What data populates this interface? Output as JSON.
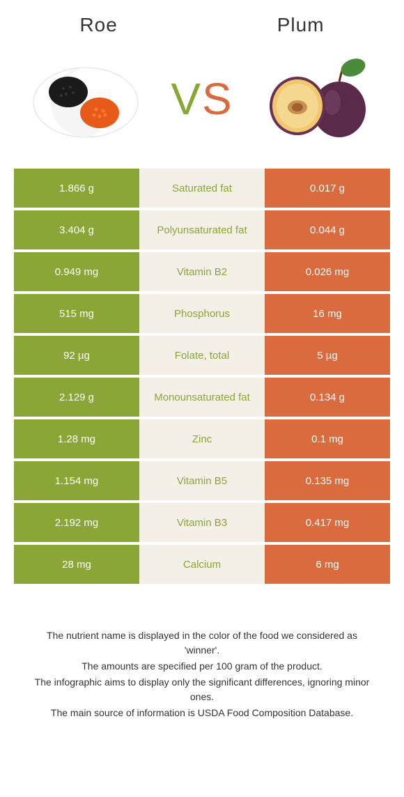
{
  "header": {
    "left_title": "Roe",
    "right_title": "Plum"
  },
  "vs": {
    "v": "V",
    "s": "S"
  },
  "colors": {
    "green": "#8aa636",
    "orange": "#d96b3f",
    "mid_bg": "#f4f0e8"
  },
  "rows": [
    {
      "left": "1.866 g",
      "label": "Saturated fat",
      "right": "0.017 g",
      "winner": "green"
    },
    {
      "left": "3.404 g",
      "label": "Polyunsaturated fat",
      "right": "0.044 g",
      "winner": "green"
    },
    {
      "left": "0.949 mg",
      "label": "Vitamin B2",
      "right": "0.026 mg",
      "winner": "green"
    },
    {
      "left": "515 mg",
      "label": "Phosphorus",
      "right": "16 mg",
      "winner": "green"
    },
    {
      "left": "92 µg",
      "label": "Folate, total",
      "right": "5 µg",
      "winner": "green"
    },
    {
      "left": "2.129 g",
      "label": "Monounsaturated fat",
      "right": "0.134 g",
      "winner": "green"
    },
    {
      "left": "1.28 mg",
      "label": "Zinc",
      "right": "0.1 mg",
      "winner": "green"
    },
    {
      "left": "1.154 mg",
      "label": "Vitamin B5",
      "right": "0.135 mg",
      "winner": "green"
    },
    {
      "left": "2.192 mg",
      "label": "Vitamin B3",
      "right": "0.417 mg",
      "winner": "green"
    },
    {
      "left": "28 mg",
      "label": "Calcium",
      "right": "6 mg",
      "winner": "green"
    }
  ],
  "footer": {
    "line1": "The nutrient name is displayed in the color of the food we considered as 'winner'.",
    "line2": "The amounts are specified per 100 gram of the product.",
    "line3": "The infographic aims to display only the significant differences, ignoring minor ones.",
    "line4": "The main source of information is USDA Food Composition Database."
  }
}
